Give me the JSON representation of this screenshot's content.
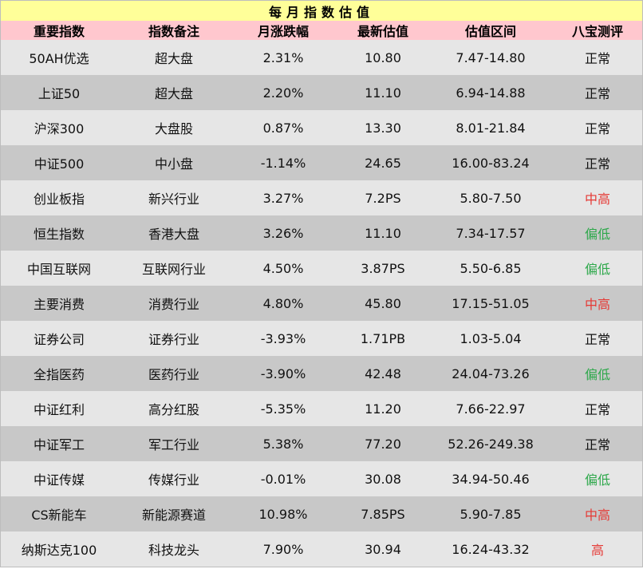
{
  "table": {
    "title": "每月指数估值",
    "headers": [
      "重要指数",
      "指数备注",
      "月涨跌幅",
      "最新估值",
      "估值区间",
      "八宝测评"
    ],
    "rows": [
      {
        "index": "50AH优选",
        "note": "超大盘",
        "change": "2.31%",
        "valuation": "10.80",
        "range": "7.47-14.80",
        "rating": "正常",
        "rating_level": "normal"
      },
      {
        "index": "上证50",
        "note": "超大盘",
        "change": "2.20%",
        "valuation": "11.10",
        "range": "6.94-14.88",
        "rating": "正常",
        "rating_level": "normal"
      },
      {
        "index": "沪深300",
        "note": "大盘股",
        "change": "0.87%",
        "valuation": "13.30",
        "range": "8.01-21.84",
        "rating": "正常",
        "rating_level": "normal"
      },
      {
        "index": "中证500",
        "note": "中小盘",
        "change": "-1.14%",
        "valuation": "24.65",
        "range": "16.00-83.24",
        "rating": "正常",
        "rating_level": "normal"
      },
      {
        "index": "创业板指",
        "note": "新兴行业",
        "change": "3.27%",
        "valuation": "7.2PS",
        "range": "5.80-7.50",
        "rating": "中高",
        "rating_level": "mid-high"
      },
      {
        "index": "恒生指数",
        "note": "香港大盘",
        "change": "3.26%",
        "valuation": "11.10",
        "range": "7.34-17.57",
        "rating": "偏低",
        "rating_level": "low"
      },
      {
        "index": "中国互联网",
        "note": "互联网行业",
        "change": "4.50%",
        "valuation": "3.87PS",
        "range": "5.50-6.85",
        "rating": "偏低",
        "rating_level": "low"
      },
      {
        "index": "主要消费",
        "note": "消费行业",
        "change": "4.80%",
        "valuation": "45.80",
        "range": "17.15-51.05",
        "rating": "中高",
        "rating_level": "mid-high"
      },
      {
        "index": "证券公司",
        "note": "证券行业",
        "change": "-3.93%",
        "valuation": "1.71PB",
        "range": "1.03-5.04",
        "rating": "正常",
        "rating_level": "normal"
      },
      {
        "index": "全指医药",
        "note": "医药行业",
        "change": "-3.90%",
        "valuation": "42.48",
        "range": "24.04-73.26",
        "rating": "偏低",
        "rating_level": "low"
      },
      {
        "index": "中证红利",
        "note": "高分红股",
        "change": "-5.35%",
        "valuation": "11.20",
        "range": "7.66-22.97",
        "rating": "正常",
        "rating_level": "normal"
      },
      {
        "index": "中证军工",
        "note": "军工行业",
        "change": "5.38%",
        "valuation": "77.20",
        "range": "52.26-249.38",
        "rating": "正常",
        "rating_level": "normal"
      },
      {
        "index": "中证传媒",
        "note": "传媒行业",
        "change": "-0.01%",
        "valuation": "30.08",
        "range": "34.94-50.46",
        "rating": "偏低",
        "rating_level": "low"
      },
      {
        "index": "CS新能车",
        "note": "新能源赛道",
        "change": "10.98%",
        "valuation": "7.85PS",
        "range": "5.90-7.85",
        "rating": "中高",
        "rating_level": "mid-high"
      },
      {
        "index": "纳斯达克100",
        "note": "科技龙头",
        "change": "7.90%",
        "valuation": "30.94",
        "range": "16.24-43.32",
        "rating": "高",
        "rating_level": "high"
      }
    ]
  },
  "colors": {
    "title_bg": "#ffff99",
    "header_bg": "#ffc7ce",
    "row_light": "#e6e6e6",
    "row_dark": "#c8c8c8",
    "rating_red": "#e53935",
    "rating_green": "#2ea84b"
  }
}
